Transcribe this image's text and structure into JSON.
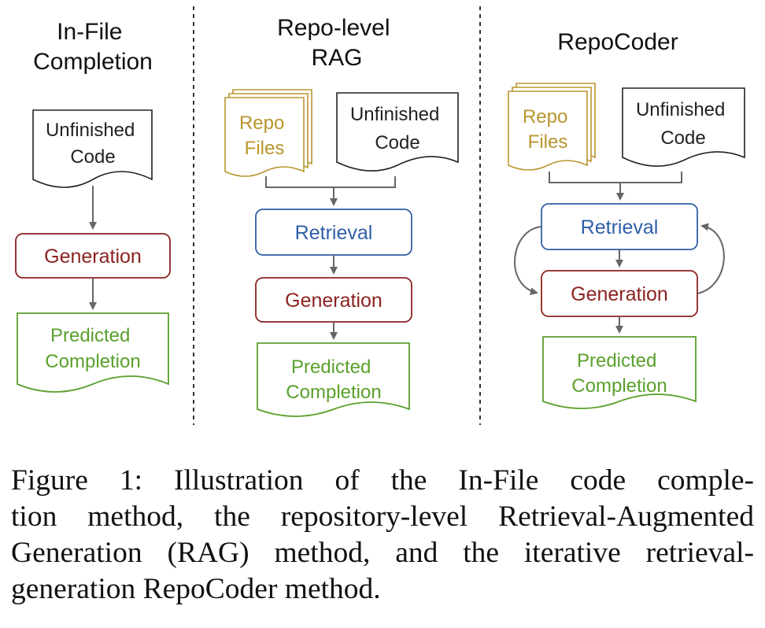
{
  "columns": [
    {
      "title": [
        "In-File",
        "Completion"
      ],
      "unfinished": [
        "Unfinished",
        "Code"
      ],
      "generation": "Generation",
      "predicted": [
        "Predicted",
        "Completion"
      ]
    },
    {
      "title": [
        "Repo-level",
        "RAG"
      ],
      "repo_files": [
        "Repo",
        "Files"
      ],
      "unfinished": [
        "Unfinished",
        "Code"
      ],
      "retrieval": "Retrieval",
      "generation": "Generation",
      "predicted": [
        "Predicted",
        "Completion"
      ]
    },
    {
      "title": [
        "RepoCoder"
      ],
      "repo_files": [
        "Repo",
        "Files"
      ],
      "unfinished": [
        "Unfinished",
        "Code"
      ],
      "retrieval": "Retrieval",
      "generation": "Generation",
      "predicted": [
        "Predicted",
        "Completion"
      ]
    }
  ],
  "colors": {
    "repo_files": "#b8962e",
    "retrieval": "#2f5fa8",
    "generation": "#8b2320",
    "predicted": "#5aa02c",
    "neutral": "#222222",
    "arrow": "#666666"
  },
  "caption": {
    "lines": [
      "Figure 1:  Illustration of the In-File code comple-",
      "tion method, the repository-level Retrieval-Augmented",
      "Generation (RAG) method, and the iterative retrieval-",
      "generation RepoCoder method."
    ]
  }
}
